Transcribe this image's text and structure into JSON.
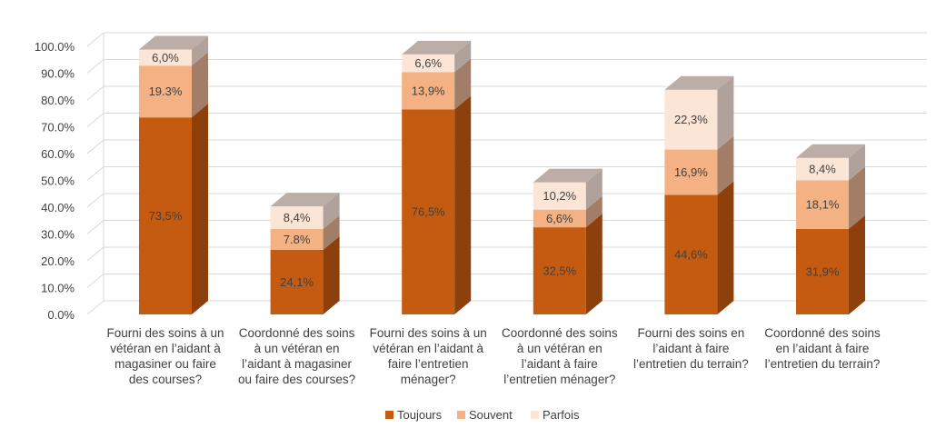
{
  "chart_data": {
    "type": "bar",
    "stacked": true,
    "three_d": true,
    "title": "",
    "xlabel": "",
    "ylabel": "",
    "ylim": [
      0,
      100
    ],
    "yticks": [
      0,
      10,
      20,
      30,
      40,
      50,
      60,
      70,
      80,
      90,
      100
    ],
    "ytick_labels": [
      "0.0%",
      "10.0%",
      "20.0%",
      "30.0%",
      "40.0%",
      "50.0%",
      "60.0%",
      "70.0%",
      "80.0%",
      "90.0%",
      "100.0%"
    ],
    "grid": true,
    "legend_position": "bottom",
    "categories": [
      [
        "Fourni des soins à un",
        "vétéran en l’aidant à",
        "magasiner ou faire",
        "des courses?"
      ],
      [
        "Coordonné des soins",
        "à un vétéran en",
        "l’aidant à magasiner",
        "ou faire des courses?"
      ],
      [
        "Fourni des soins à un",
        "vétéran en l’aidant à",
        "faire l’entretien",
        "ménager?"
      ],
      [
        "Coordonné des soins",
        "à un vétéran en",
        "l’aidant à faire",
        "l’entretien ménager?"
      ],
      [
        "Fourni des soins en",
        "l’aidant à faire",
        "l’entretien du terrain?"
      ],
      [
        "Coordonné des soins",
        "en l’aidant à faire",
        "l’entretien du terrain?"
      ]
    ],
    "series": [
      {
        "name": "Toujours",
        "color": "#C55A11",
        "side_color": "#8E400C",
        "top_color": "#B07B5A",
        "values": [
          73.5,
          24.1,
          76.5,
          32.5,
          44.6,
          31.9
        ],
        "labels": [
          "73,5%",
          "24,1%",
          "76,5%",
          "32,5%",
          "44,6%",
          "31,9%"
        ]
      },
      {
        "name": "Souvent",
        "color": "#F4B183",
        "side_color": "#A27E69",
        "top_color": "#C8A995",
        "values": [
          19.3,
          7.8,
          13.9,
          6.6,
          16.9,
          18.1
        ],
        "labels": [
          "19.3%",
          "7.8%",
          "13,9%",
          "6,6%",
          "16,9%",
          "18,1%"
        ]
      },
      {
        "name": "Parfois",
        "color": "#FBE5D6",
        "side_color": "#B0A19B",
        "top_color": "#BCADA6",
        "values": [
          6.0,
          8.4,
          6.6,
          10.2,
          22.3,
          8.4
        ],
        "labels": [
          "6,0%",
          "8,4%",
          "6,6%",
          "10,2%",
          "22,3%",
          "8,4%"
        ]
      }
    ]
  }
}
